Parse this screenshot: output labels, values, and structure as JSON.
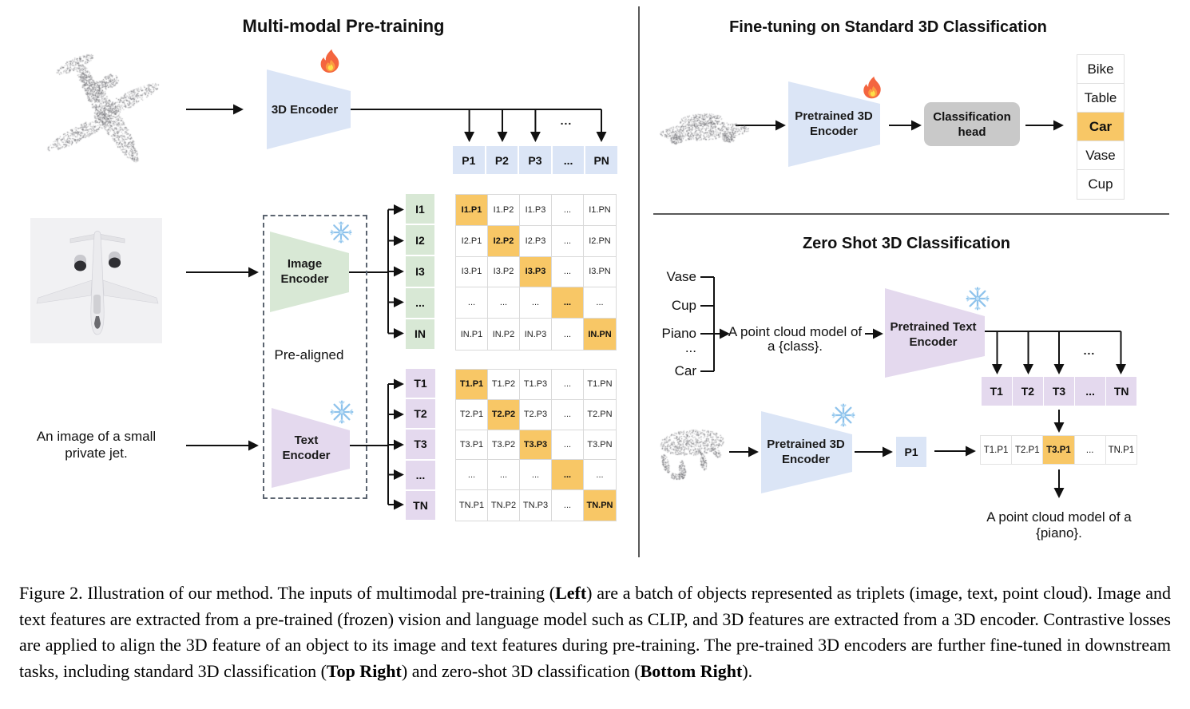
{
  "left": {
    "title": "Multi-modal Pre-training",
    "encoder_3d_label": "3D Encoder",
    "image_encoder_label": "Image\nEncoder",
    "text_encoder_label": "Text\nEncoder",
    "pre_aligned_label": "Pre-aligned",
    "image_caption": "An image of a small\nprivate jet.",
    "p_row": [
      "P1",
      "P2",
      "P3",
      "...",
      "PN"
    ],
    "image_rows": [
      "I1",
      "I2",
      "I3",
      "...",
      "IN"
    ],
    "text_rows": [
      "T1",
      "T2",
      "T3",
      "...",
      "TN"
    ],
    "image_matrix": [
      {
        "cells": [
          "I1.P1",
          "I1.P2",
          "I1.P3",
          "...",
          "I1.PN"
        ],
        "highlight_index": 0
      },
      {
        "cells": [
          "I2.P1",
          "I2.P2",
          "I2.P3",
          "...",
          "I2.PN"
        ],
        "highlight_index": 1
      },
      {
        "cells": [
          "I3.P1",
          "I3.P2",
          "I3.P3",
          "...",
          "I3.PN"
        ],
        "highlight_index": 2
      },
      {
        "cells": [
          "...",
          "...",
          "...",
          "...",
          "..."
        ],
        "highlight_index": 3
      },
      {
        "cells": [
          "IN.P1",
          "IN.P2",
          "IN.P3",
          "...",
          "IN.PN"
        ],
        "highlight_index": 4
      }
    ],
    "text_matrix": [
      {
        "cells": [
          "T1.P1",
          "T1.P2",
          "T1.P3",
          "...",
          "T1.PN"
        ],
        "highlight_index": 0
      },
      {
        "cells": [
          "T2.P1",
          "T2.P2",
          "T2.P3",
          "...",
          "T2.PN"
        ],
        "highlight_index": 1
      },
      {
        "cells": [
          "T3.P1",
          "T3.P2",
          "T3.P3",
          "...",
          "T3.PN"
        ],
        "highlight_index": 2
      },
      {
        "cells": [
          "...",
          "...",
          "...",
          "...",
          "..."
        ],
        "highlight_index": 3
      },
      {
        "cells": [
          "TN.P1",
          "TN.P2",
          "TN.P3",
          "...",
          "TN.PN"
        ],
        "highlight_index": 4
      }
    ]
  },
  "top_right": {
    "title": "Fine-tuning on Standard 3D Classification",
    "encoder_label": "Pretrained 3D\nEncoder",
    "head_label": "Classification\nhead",
    "classes": [
      "Bike",
      "Table",
      "Car",
      "Vase",
      "Cup"
    ],
    "highlight_index": 2
  },
  "bottom_right": {
    "title": "Zero Shot 3D Classification",
    "classes": [
      "Vase",
      "Cup",
      "Piano",
      "...",
      "Car"
    ],
    "prompt": "A point cloud model of\na {class}.",
    "text_encoder_label": "Pretrained Text\nEncoder",
    "encoder_3d_label": "Pretrained 3D\nEncoder",
    "p1_label": "P1",
    "t_row": [
      "T1",
      "T2",
      "T3",
      "...",
      "TN"
    ],
    "sim_row": {
      "cells": [
        "T1.P1",
        "T2.P1",
        "T3.P1",
        "...",
        "TN.P1"
      ],
      "highlight_index": 2
    },
    "result_text": "A point cloud model of a {piano}."
  },
  "misc": {
    "dots": "..."
  },
  "icons": [
    "fire-icon",
    "snowflake-icon"
  ],
  "colors": {
    "encoder_blue": "#dbe5f6",
    "encoder_green": "#d8e8d5",
    "encoder_purple": "#e4d9ee",
    "highlight_orange": "#f8c766",
    "head_gray": "#c9c9c9"
  },
  "caption": {
    "segments": [
      {
        "text": "Figure 2. Illustration of our method.  The inputs of multimodal pre-training (",
        "bold": false
      },
      {
        "text": "Left",
        "bold": true
      },
      {
        "text": ") are a batch of objects represented as triplets (image, text, point cloud).  Image and text features are extracted from a pre-trained (frozen) vision and language model such as CLIP, and 3D features are extracted from a 3D encoder.  Contrastive losses are applied to align the 3D feature of an object to its image and text features during pre-training.  The pre-trained 3D encoders are further fine-tuned in downstream tasks, including standard 3D classification (",
        "bold": false
      },
      {
        "text": "Top Right",
        "bold": true
      },
      {
        "text": ") and zero-shot 3D classification (",
        "bold": false
      },
      {
        "text": "Bottom Right",
        "bold": true
      },
      {
        "text": ").",
        "bold": false
      }
    ]
  }
}
